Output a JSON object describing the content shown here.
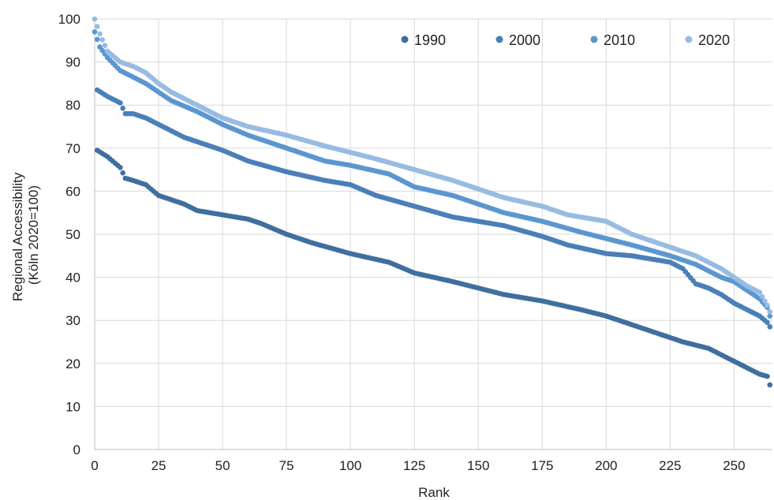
{
  "chart_data": {
    "type": "scatter",
    "title": "",
    "xlabel": "Rank",
    "ylabel_lines": [
      "Regional Accessibility",
      "(Köln 2020=100)"
    ],
    "xlim": [
      0,
      265
    ],
    "ylim": [
      0,
      100
    ],
    "x_ticks": [
      0,
      25,
      50,
      75,
      100,
      125,
      150,
      175,
      200,
      225,
      250
    ],
    "y_ticks": [
      0,
      10,
      20,
      30,
      40,
      50,
      60,
      70,
      80,
      90,
      100
    ],
    "grid": true,
    "legend_position": "top-right",
    "series": [
      {
        "name": "1990",
        "color": "#3f6f9e",
        "x": [
          1,
          5,
          10,
          12,
          15,
          20,
          25,
          35,
          40,
          50,
          60,
          65,
          75,
          85,
          100,
          115,
          125,
          140,
          150,
          160,
          175,
          190,
          200,
          210,
          220,
          230,
          240,
          245,
          250,
          255,
          260,
          263,
          264
        ],
        "y": [
          69.5,
          68,
          65.5,
          63,
          62.5,
          61.5,
          59,
          57,
          55.5,
          54.5,
          53.5,
          52.5,
          50,
          48,
          45.5,
          43.5,
          41,
          39,
          37.5,
          36,
          34.5,
          32.5,
          31,
          29,
          27,
          25,
          23.5,
          22,
          20.5,
          19,
          17.5,
          17,
          15
        ]
      },
      {
        "name": "2000",
        "color": "#4a7fb8",
        "x": [
          1,
          5,
          10,
          12,
          15,
          20,
          25,
          35,
          40,
          50,
          60,
          75,
          90,
          100,
          110,
          125,
          140,
          150,
          160,
          175,
          185,
          200,
          210,
          225,
          230,
          235,
          240,
          245,
          250,
          255,
          260,
          263,
          264
        ],
        "y": [
          83.5,
          82,
          80.5,
          78,
          78,
          77,
          75.5,
          72.5,
          71.5,
          69.5,
          67,
          64.5,
          62.5,
          61.5,
          59,
          56.5,
          54,
          53,
          52,
          49.5,
          47.5,
          45.5,
          45,
          43.5,
          42,
          38.5,
          37.5,
          36,
          34,
          32.5,
          31,
          29.5,
          28.5
        ]
      },
      {
        "name": "2010",
        "color": "#5b96d0",
        "x": [
          0,
          2,
          5,
          10,
          15,
          20,
          25,
          30,
          40,
          50,
          60,
          75,
          90,
          100,
          115,
          125,
          140,
          150,
          160,
          175,
          190,
          200,
          210,
          225,
          235,
          240,
          245,
          250,
          255,
          260,
          263,
          264
        ],
        "y": [
          97,
          93.5,
          91,
          88,
          86.5,
          85,
          83,
          81,
          78.5,
          75.5,
          73,
          70,
          67,
          66,
          64,
          61,
          59,
          57,
          55,
          53,
          50.5,
          49,
          47.5,
          45,
          43,
          41.5,
          40,
          39,
          37,
          35,
          33,
          31
        ]
      },
      {
        "name": "2020",
        "color": "#98bbe2",
        "x": [
          0,
          2,
          5,
          10,
          15,
          20,
          25,
          30,
          40,
          50,
          60,
          75,
          90,
          100,
          110,
          125,
          140,
          150,
          160,
          175,
          185,
          200,
          210,
          225,
          235,
          240,
          245,
          250,
          255,
          260,
          263,
          264
        ],
        "y": [
          100,
          96.5,
          92.5,
          90,
          89,
          87.5,
          85,
          83,
          80,
          77,
          75,
          73,
          70.5,
          69,
          67.5,
          65,
          62.5,
          60.5,
          58.5,
          56.5,
          54.5,
          53,
          50,
          47,
          45,
          43.5,
          42,
          40,
          38,
          36.5,
          33.5,
          32
        ]
      }
    ]
  }
}
